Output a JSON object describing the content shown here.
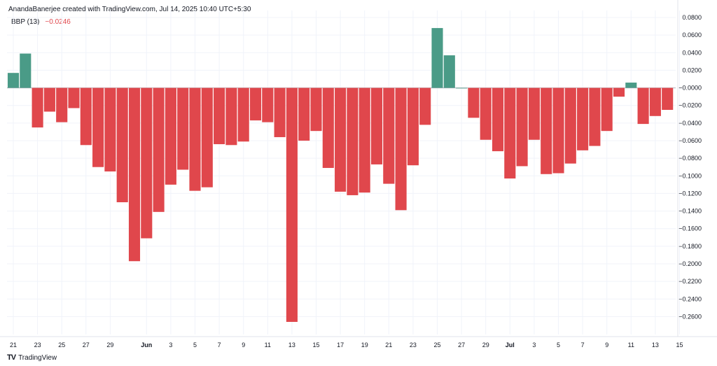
{
  "attribution": "AnandaBanerjee created with TradingView.com, Jul 14, 2025 10:40 UTC+5:30",
  "legend": {
    "name": "BBP (13)",
    "value": "−0.0246"
  },
  "footer": {
    "logo": "TV",
    "brand": "TradingView"
  },
  "colors": {
    "positive": "#4a9b87",
    "negative": "#e0474c",
    "grid": "#f0f3fa",
    "zero": "#b2b5be"
  },
  "chart_data": {
    "type": "bar",
    "title": "",
    "series_name": "BBP (13)",
    "ylim": [
      -0.27,
      0.08
    ],
    "grid": true,
    "y_ticks": [
      {
        "value": 0.08,
        "label": "0.0800"
      },
      {
        "value": 0.06,
        "label": "0.0600"
      },
      {
        "value": 0.04,
        "label": "0.0400"
      },
      {
        "value": 0.02,
        "label": "0.0200"
      },
      {
        "value": 0.0,
        "label": "−0.0000"
      },
      {
        "value": -0.02,
        "label": "−0.0200"
      },
      {
        "value": -0.04,
        "label": "−0.0400"
      },
      {
        "value": -0.06,
        "label": "−0.0600"
      },
      {
        "value": -0.08,
        "label": "−0.0800"
      },
      {
        "value": -0.1,
        "label": "−0.1000"
      },
      {
        "value": -0.12,
        "label": "−0.1200"
      },
      {
        "value": -0.14,
        "label": "−0.1400"
      },
      {
        "value": -0.16,
        "label": "−0.1600"
      },
      {
        "value": -0.18,
        "label": "−0.1800"
      },
      {
        "value": -0.2,
        "label": "−0.2000"
      },
      {
        "value": -0.22,
        "label": "−0.2200"
      },
      {
        "value": -0.24,
        "label": "−0.2400"
      },
      {
        "value": -0.26,
        "label": "−0.2600"
      }
    ],
    "x_ticks": [
      {
        "bar": 0,
        "label": "21"
      },
      {
        "bar": 2,
        "label": "23"
      },
      {
        "bar": 4,
        "label": "25"
      },
      {
        "bar": 6,
        "label": "27"
      },
      {
        "bar": 8,
        "label": "29"
      },
      {
        "bar": 11,
        "label": "Jun",
        "bold": true
      },
      {
        "bar": 13,
        "label": "3"
      },
      {
        "bar": 15,
        "label": "5"
      },
      {
        "bar": 17,
        "label": "7"
      },
      {
        "bar": 19,
        "label": "9"
      },
      {
        "bar": 21,
        "label": "11"
      },
      {
        "bar": 23,
        "label": "13"
      },
      {
        "bar": 25,
        "label": "15"
      },
      {
        "bar": 27,
        "label": "17"
      },
      {
        "bar": 29,
        "label": "19"
      },
      {
        "bar": 31,
        "label": "21"
      },
      {
        "bar": 33,
        "label": "23"
      },
      {
        "bar": 35,
        "label": "25"
      },
      {
        "bar": 37,
        "label": "27"
      },
      {
        "bar": 39,
        "label": "29"
      },
      {
        "bar": 41,
        "label": "Jul",
        "bold": true
      },
      {
        "bar": 43,
        "label": "3"
      },
      {
        "bar": 45,
        "label": "5"
      },
      {
        "bar": 47,
        "label": "7"
      },
      {
        "bar": 49,
        "label": "9"
      },
      {
        "bar": 51,
        "label": "11"
      },
      {
        "bar": 53,
        "label": "13"
      },
      {
        "bar": 55,
        "label": "15"
      }
    ],
    "values": [
      0.017,
      0.039,
      -0.045,
      -0.027,
      -0.039,
      -0.023,
      -0.065,
      -0.09,
      -0.095,
      -0.13,
      -0.197,
      -0.171,
      -0.141,
      -0.11,
      -0.093,
      -0.117,
      -0.113,
      -0.064,
      -0.065,
      -0.061,
      -0.037,
      -0.039,
      -0.056,
      -0.266,
      -0.06,
      -0.049,
      -0.091,
      -0.118,
      -0.122,
      -0.119,
      -0.087,
      -0.109,
      -0.139,
      -0.088,
      -0.042,
      0.068,
      0.037,
      0.0,
      -0.034,
      -0.059,
      -0.072,
      -0.103,
      -0.089,
      -0.059,
      -0.098,
      -0.097,
      -0.086,
      -0.071,
      -0.066,
      -0.049,
      -0.01,
      0.006,
      -0.041,
      -0.032,
      -0.025
    ]
  }
}
